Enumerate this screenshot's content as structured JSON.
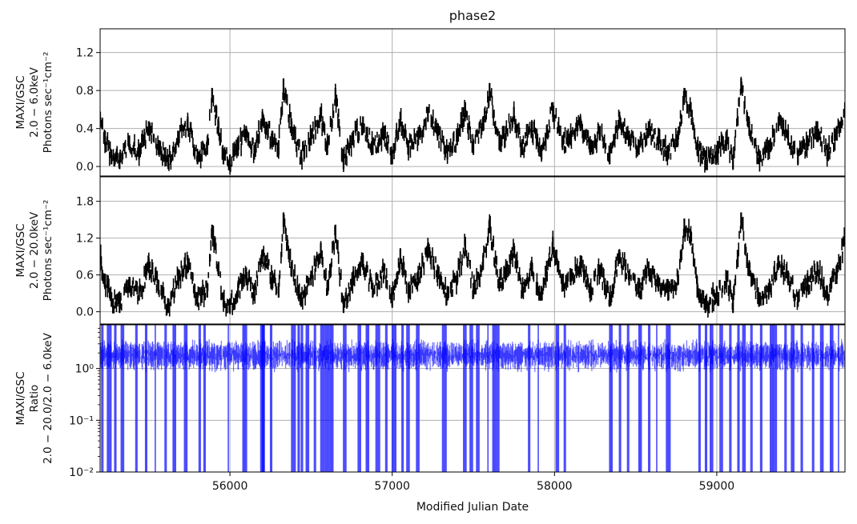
{
  "chart_data": {
    "type": "line",
    "title": "phase2",
    "xlabel": "Modified Julian Date",
    "xlim": [
      55200,
      59790
    ],
    "x_ticks": [
      56000,
      57000,
      58000,
      59000
    ],
    "x_tick_labels": [
      "56000",
      "57000",
      "58000",
      "59000"
    ],
    "grid": true,
    "panels": [
      {
        "ylabel": [
          "MAXI/GSC",
          "2.0 − 6.0keV",
          "Photons sec⁻¹cm⁻²"
        ],
        "ylim": [
          -0.1,
          1.45
        ],
        "y_ticks": [
          0.0,
          0.4,
          0.8,
          1.2
        ],
        "y_tick_labels": [
          "0.0",
          "0.4",
          "0.8",
          "1.2"
        ],
        "series": [
          {
            "color": "#000000",
            "style": "errorbar",
            "x": [
              55200,
              55230,
              55270,
              55320,
              55380,
              55440,
              55500,
              55560,
              55620,
              55680,
              55740,
              55800,
              55860,
              55890,
              55930,
              55960,
              56000,
              56050,
              56100,
              56150,
              56200,
              56260,
              56300,
              56330,
              56380,
              56440,
              56500,
              56560,
              56600,
              56650,
              56700,
              56760,
              56820,
              56880,
              56950,
              57000,
              57050,
              57100,
              57160,
              57220,
              57280,
              57340,
              57400,
              57450,
              57500,
              57560,
              57600,
              57660,
              57700,
              57750,
              57800,
              57860,
              57920,
              57990,
              58050,
              58100,
              58160,
              58220,
              58280,
              58340,
              58400,
              58460,
              58520,
              58580,
              58640,
              58700,
              58760,
              58800,
              58840,
              58880,
              58930,
              59000,
              59060,
              59100,
              59150,
              59200,
              59260,
              59320,
              59380,
              59440,
              59500,
              59560,
              59620,
              59680,
              59740,
              59790
            ],
            "y": [
              0.5,
              0.3,
              0.1,
              0.05,
              0.25,
              0.15,
              0.4,
              0.2,
              0.05,
              0.3,
              0.45,
              0.1,
              0.2,
              0.75,
              0.4,
              0.1,
              0.05,
              0.2,
              0.35,
              0.15,
              0.5,
              0.3,
              0.2,
              0.85,
              0.4,
              0.1,
              0.3,
              0.55,
              0.2,
              0.75,
              0.05,
              0.3,
              0.45,
              0.2,
              0.35,
              0.1,
              0.5,
              0.2,
              0.3,
              0.55,
              0.35,
              0.15,
              0.3,
              0.6,
              0.2,
              0.45,
              0.8,
              0.25,
              0.35,
              0.55,
              0.2,
              0.4,
              0.15,
              0.6,
              0.25,
              0.3,
              0.45,
              0.2,
              0.35,
              0.1,
              0.5,
              0.3,
              0.2,
              0.4,
              0.25,
              0.15,
              0.3,
              0.75,
              0.6,
              0.2,
              0.05,
              0.15,
              0.3,
              0.05,
              0.85,
              0.4,
              0.1,
              0.2,
              0.45,
              0.3,
              0.1,
              0.25,
              0.4,
              0.15,
              0.35,
              0.6
            ]
          }
        ]
      },
      {
        "ylabel": [
          "MAXI/GSC",
          "2.0 − 20.0keV",
          "Photons sec⁻¹cm⁻²"
        ],
        "ylim": [
          -0.2,
          2.2
        ],
        "y_ticks": [
          0.0,
          0.6,
          1.2,
          1.8
        ],
        "y_tick_labels": [
          "0.0",
          "0.6",
          "1.2",
          "1.8"
        ],
        "series": [
          {
            "color": "#000000",
            "style": "errorbar",
            "x": [
              55200,
              55230,
              55270,
              55320,
              55380,
              55440,
              55500,
              55560,
              55620,
              55680,
              55740,
              55800,
              55860,
              55890,
              55930,
              55960,
              56000,
              56050,
              56100,
              56150,
              56200,
              56260,
              56300,
              56330,
              56380,
              56440,
              56500,
              56560,
              56600,
              56650,
              56700,
              56760,
              56820,
              56880,
              56950,
              57000,
              57050,
              57100,
              57160,
              57220,
              57280,
              57340,
              57400,
              57450,
              57500,
              57560,
              57600,
              57660,
              57700,
              57750,
              57800,
              57860,
              57920,
              57990,
              58050,
              58100,
              58160,
              58220,
              58280,
              58340,
              58400,
              58460,
              58520,
              58580,
              58640,
              58700,
              58760,
              58800,
              58840,
              58880,
              58930,
              59000,
              59060,
              59100,
              59150,
              59200,
              59260,
              59320,
              59380,
              59440,
              59500,
              59560,
              59620,
              59680,
              59740,
              59790
            ],
            "y": [
              0.9,
              0.5,
              0.2,
              0.1,
              0.45,
              0.3,
              0.75,
              0.4,
              0.1,
              0.55,
              0.8,
              0.2,
              0.35,
              1.3,
              0.7,
              0.2,
              0.1,
              0.35,
              0.6,
              0.3,
              0.9,
              0.55,
              0.35,
              1.5,
              0.7,
              0.2,
              0.55,
              1.0,
              0.4,
              1.3,
              0.1,
              0.55,
              0.8,
              0.35,
              0.65,
              0.2,
              0.9,
              0.35,
              0.55,
              1.0,
              0.65,
              0.3,
              0.55,
              1.1,
              0.35,
              0.8,
              1.4,
              0.45,
              0.65,
              1.0,
              0.35,
              0.7,
              0.3,
              1.1,
              0.45,
              0.55,
              0.8,
              0.35,
              0.65,
              0.2,
              0.9,
              0.55,
              0.35,
              0.7,
              0.45,
              0.3,
              0.55,
              1.4,
              1.2,
              0.35,
              0.1,
              0.3,
              0.55,
              0.1,
              1.5,
              0.7,
              0.2,
              0.35,
              0.8,
              0.55,
              0.2,
              0.45,
              0.7,
              0.3,
              0.65,
              1.2
            ]
          }
        ]
      },
      {
        "ylabel": [
          "MAXI/GSC",
          "Ratio",
          "2.0 − 20.0/2.0 − 6.0keV"
        ],
        "yscale": "log",
        "ylim": [
          0.01,
          7
        ],
        "y_ticks": [
          0.01,
          0.1,
          1
        ],
        "y_tick_labels": [
          "10⁻²",
          "10⁻¹",
          "10⁰"
        ],
        "series": [
          {
            "color": "#0000ff",
            "style": "errorbar",
            "typical_ratio": 1.8,
            "dropout_x": [
              55210,
              55245,
              55290,
              55330,
              55420,
              55480,
              55540,
              55600,
              55650,
              55720,
              55810,
              55840,
              55990,
              56080,
              56190,
              56200,
              56250,
              56380,
              56420,
              56440,
              56470,
              56520,
              56560,
              56590,
              56620,
              56700,
              56790,
              56840,
              56900,
              56960,
              57000,
              57060,
              57090,
              57150,
              57310,
              57440,
              57480,
              57520,
              57590,
              57620,
              57650,
              57840,
              57900,
              58010,
              58060,
              58340,
              58400,
              58450,
              58520,
              58580,
              58630,
              58690,
              58890,
              58930,
              58960,
              59020,
              59080,
              59130,
              59160,
              59210,
              59270,
              59330,
              59360,
              59420,
              59460,
              59520,
              59590,
              59640,
              59700,
              59750
            ],
            "dropout_level": 0.01
          }
        ]
      }
    ]
  }
}
